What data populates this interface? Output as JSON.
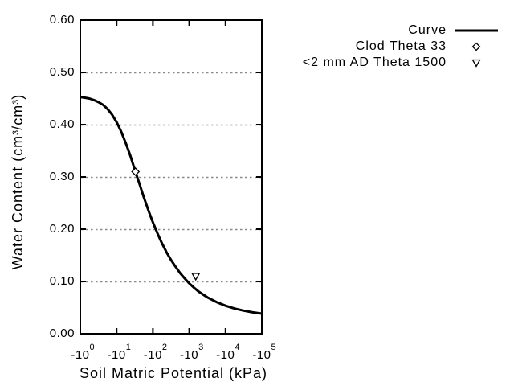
{
  "chart_data": {
    "type": "line",
    "title": "",
    "xlabel": "Soil Matric Potential (kPa)",
    "ylabel_text": "Water Content (cm3/cm3)",
    "ylabel": {
      "pre": "Water Content (cm",
      "sup1": "3",
      "mid": "/cm",
      "sup2": "3",
      "post": ")"
    },
    "x_axis": {
      "scale": "negative-log10",
      "range_log10": [
        0,
        5
      ],
      "tick_base": "-10",
      "tick_exponents": [
        "0",
        "1",
        "2",
        "3",
        "4",
        "5"
      ],
      "grid": false
    },
    "y_axis": {
      "range": [
        0.0,
        0.6
      ],
      "tick_labels": [
        "0.00",
        "0.10",
        "0.20",
        "0.30",
        "0.40",
        "0.50",
        "0.60"
      ],
      "tick_values": [
        0.0,
        0.1,
        0.2,
        0.3,
        0.4,
        0.5,
        0.6
      ],
      "grid": true,
      "grid_values": [
        0.1,
        0.2,
        0.3,
        0.4,
        0.5
      ],
      "grid_style": "dotted"
    },
    "series": [
      {
        "name": "Curve",
        "type": "line",
        "color": "#000000",
        "x_log10": [
          0,
          0.125,
          0.25,
          0.375,
          0.5,
          0.625,
          0.75,
          0.875,
          1.0,
          1.125,
          1.25,
          1.375,
          1.5,
          1.625,
          1.75,
          1.875,
          2.0,
          2.125,
          2.25,
          2.375,
          2.5,
          2.625,
          2.75,
          2.875,
          3.0,
          3.125,
          3.25,
          3.5,
          3.75,
          4.0,
          4.25,
          4.5,
          4.75,
          5.0
        ],
        "theta": [
          0.453,
          0.4515,
          0.45,
          0.447,
          0.443,
          0.438,
          0.43,
          0.419,
          0.405,
          0.387,
          0.365,
          0.341,
          0.314,
          0.288,
          0.261,
          0.236,
          0.213,
          0.192,
          0.173,
          0.156,
          0.141,
          0.128,
          0.116,
          0.106,
          0.0965,
          0.0884,
          0.0813,
          0.0696,
          0.0606,
          0.0536,
          0.0482,
          0.0441,
          0.0409,
          0.0384
        ]
      },
      {
        "name": "Clod Theta 33",
        "type": "scatter",
        "marker": "diamond-open",
        "color": "#000000",
        "points": [
          {
            "x_log10": 1.52,
            "theta": 0.31
          }
        ]
      },
      {
        "name": "<2 mm AD Theta 1500",
        "type": "scatter",
        "marker": "triangle-down-open",
        "color": "#000000",
        "points": [
          {
            "x_log10": 3.18,
            "theta": 0.11
          }
        ]
      }
    ],
    "legend": {
      "position": "top-right-outside",
      "entries": [
        {
          "label": "Curve",
          "marker": "line"
        },
        {
          "label": "Clod Theta 33",
          "marker": "diamond-open"
        },
        {
          "label": "<2 mm AD Theta 1500",
          "marker": "triangle-down-open"
        }
      ]
    },
    "colors": {
      "axis": "#000000",
      "grid": "#8a8a8a",
      "text": "#000000",
      "background": "#ffffff"
    }
  }
}
